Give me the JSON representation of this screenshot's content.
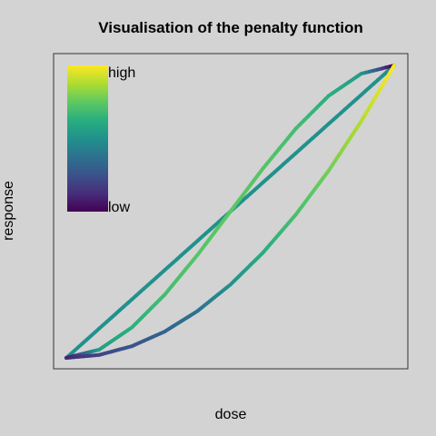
{
  "chart_data": {
    "type": "line",
    "title": "Visualisation of the penalty function",
    "xlabel": "dose",
    "ylabel": "response",
    "xlim": [
      0,
      1
    ],
    "ylim": [
      0,
      1
    ],
    "x_ticks_shown": false,
    "y_ticks_shown": false,
    "grid": false,
    "colormap": "viridis",
    "colorbar": {
      "placement": "top-left",
      "labels": {
        "high": "high",
        "low": "low"
      }
    },
    "series": [
      {
        "x": [
          0,
          0.1,
          0.2,
          0.3,
          0.4,
          0.5,
          0.6,
          0.7,
          0.8,
          0.9,
          1.0
        ],
        "y": [
          0,
          0.1,
          0.2,
          0.3,
          0.4,
          0.5,
          0.6,
          0.7,
          0.8,
          0.9,
          1.0
        ],
        "penalty": [
          0.5,
          0.5,
          0.5,
          0.5,
          0.5,
          0.5,
          0.5,
          0.5,
          0.5,
          0.5,
          0.5
        ]
      },
      {
        "x": [
          0,
          0.1,
          0.2,
          0.3,
          0.4,
          0.5,
          0.6,
          0.7,
          0.8,
          0.9,
          1.0
        ],
        "y": [
          0,
          0.028,
          0.104,
          0.216,
          0.352,
          0.5,
          0.648,
          0.784,
          0.896,
          0.972,
          1.0
        ],
        "penalty": [
          0.0,
          0.55,
          0.63,
          0.69,
          0.73,
          0.74,
          0.73,
          0.69,
          0.63,
          0.55,
          0.0
        ]
      },
      {
        "x": [
          0,
          0.1,
          0.2,
          0.3,
          0.4,
          0.5,
          0.6,
          0.7,
          0.8,
          0.9,
          1.0
        ],
        "y": [
          0,
          0.01,
          0.04,
          0.09,
          0.16,
          0.25,
          0.36,
          0.49,
          0.64,
          0.81,
          1.0
        ],
        "penalty": [
          0.1,
          0.2,
          0.26,
          0.32,
          0.38,
          0.5,
          0.62,
          0.7,
          0.78,
          0.88,
          1.0
        ]
      }
    ]
  }
}
